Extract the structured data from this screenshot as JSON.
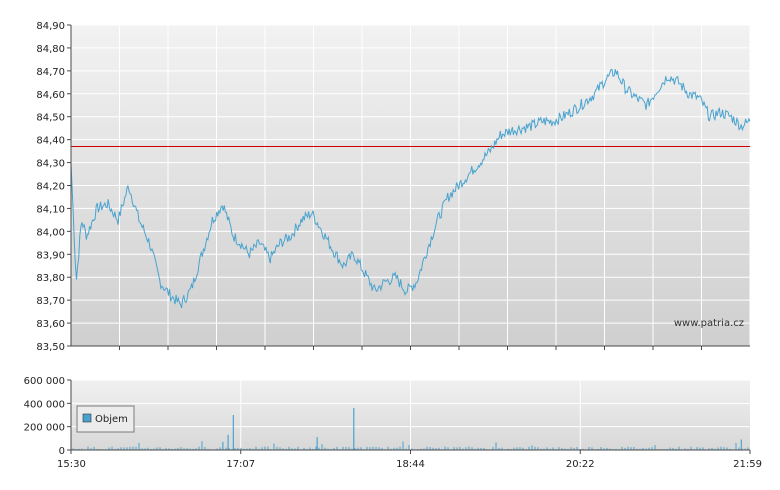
{
  "watermark": "www.patria.cz",
  "chart_data": [
    {
      "type": "line",
      "panel": "price",
      "ylim": [
        83.5,
        84.9
      ],
      "y_ticks": [
        "84,90",
        "84,80",
        "84,70",
        "84,60",
        "84,50",
        "84,40",
        "84,30",
        "84,20",
        "84,10",
        "84,00",
        "83,90",
        "83,80",
        "83,70",
        "83,60",
        "83,50"
      ],
      "reference_line": 84.37,
      "color": "#4aa3cf",
      "reference_color": "#cc0000",
      "grid": true,
      "x_hours": [
        15.5,
        15.55,
        15.6,
        15.65,
        15.75,
        15.85,
        15.95,
        16.05,
        16.15,
        16.25,
        16.35,
        16.45,
        16.55,
        16.65,
        16.75,
        16.85,
        16.95,
        17.05,
        17.117,
        17.2,
        17.3,
        17.4,
        17.5,
        17.6,
        17.7,
        17.8,
        17.9,
        18.0,
        18.1,
        18.2,
        18.3,
        18.4,
        18.5,
        18.6,
        18.7,
        18.733,
        18.8,
        18.9,
        19.0,
        19.1,
        19.2,
        19.3,
        19.4,
        19.5,
        19.6,
        19.7,
        19.8,
        19.9,
        20.0,
        20.1,
        20.2,
        20.367,
        20.5,
        20.6,
        20.7,
        20.8,
        20.9,
        21.0,
        21.1,
        21.2,
        21.3,
        21.4,
        21.5,
        21.6,
        21.7,
        21.8,
        21.9,
        21.983
      ],
      "values": [
        84.3,
        83.78,
        84.05,
        83.98,
        84.1,
        84.12,
        84.05,
        84.2,
        84.05,
        83.95,
        83.78,
        83.72,
        83.68,
        83.75,
        83.9,
        84.05,
        84.12,
        83.98,
        83.95,
        83.9,
        83.95,
        83.88,
        83.95,
        83.98,
        84.05,
        84.08,
        84.0,
        83.92,
        83.85,
        83.9,
        83.82,
        83.74,
        83.78,
        83.8,
        83.74,
        83.75,
        83.78,
        83.92,
        84.05,
        84.15,
        84.2,
        84.25,
        84.3,
        84.35,
        84.42,
        84.44,
        84.45,
        84.46,
        84.48,
        84.48,
        84.5,
        84.55,
        84.6,
        84.66,
        84.7,
        84.62,
        84.58,
        84.55,
        84.62,
        84.68,
        84.65,
        84.6,
        84.58,
        84.5,
        84.52,
        84.5,
        84.46,
        84.48
      ],
      "noise": 0.025
    },
    {
      "type": "bar",
      "panel": "volume",
      "ylim": [
        0,
        600000
      ],
      "y_ticks": [
        "600 000",
        "400 000",
        "200 000",
        "0"
      ],
      "legend": "Objem",
      "legend_position": "left",
      "color": "#4aa3cf",
      "spikes": [
        {
          "x_hour": 17.05,
          "value": 300000
        },
        {
          "x_hour": 17.0,
          "value": 130000
        },
        {
          "x_hour": 18.2,
          "value": 360000
        },
        {
          "x_hour": 17.85,
          "value": 110000
        },
        {
          "x_hour": 21.9,
          "value": 90000
        },
        {
          "x_hour": 16.95,
          "value": 70000
        }
      ],
      "baseline_volume": 25000
    }
  ],
  "x_ticks": [
    "15:30",
    "17:07",
    "18:44",
    "20:22",
    "21:59"
  ],
  "x_range_hours": [
    15.5,
    21.983
  ]
}
